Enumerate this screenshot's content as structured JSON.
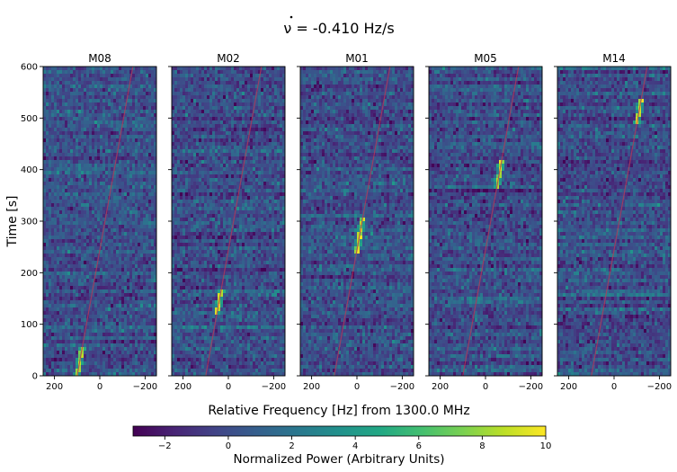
{
  "chart_data": {
    "type": "heatmap",
    "title": "ν̇ = -0.410 Hz/s",
    "title_dot_symbol": "ν",
    "title_rest": " = -0.410 Hz/s",
    "xlabel": "Relative Frequency [Hz] from 1300.0 MHz",
    "ylabel": "Time [s]",
    "xlim": [
      250,
      -250
    ],
    "ylim": [
      0,
      600
    ],
    "x_ticks": [
      200,
      0,
      -200
    ],
    "x_tick_labels": [
      "200",
      "0",
      "−200"
    ],
    "y_ticks": [
      0,
      100,
      200,
      300,
      400,
      500,
      600
    ],
    "y_tick_labels": [
      "0",
      "100",
      "200",
      "300",
      "400",
      "500",
      "600"
    ],
    "drift_rate_hz_per_s": -0.41,
    "panels": [
      {
        "name": "M08",
        "line_x_at_t0": 100,
        "signal_t_start": 0,
        "signal_t_end": 55
      },
      {
        "name": "M02",
        "line_x_at_t0": 100,
        "signal_t_start": 120,
        "signal_t_end": 170
      },
      {
        "name": "M01",
        "line_x_at_t0": 100,
        "signal_t_start": 240,
        "signal_t_end": 305
      },
      {
        "name": "M05",
        "line_x_at_t0": 100,
        "signal_t_start": 365,
        "signal_t_end": 420
      },
      {
        "name": "M14",
        "line_x_at_t0": 100,
        "signal_t_start": 490,
        "signal_t_end": 540
      }
    ],
    "colorbar": {
      "label": "Normalized Power (Arbitrary Units)",
      "colormap": "viridis",
      "range": [
        -3,
        10
      ],
      "ticks": [
        -2,
        0,
        2,
        4,
        6,
        8,
        10
      ],
      "tick_labels": [
        "−2",
        "0",
        "2",
        "4",
        "6",
        "8",
        "10"
      ]
    },
    "colors": {
      "drift_line": "#b23a5a",
      "background_mean": "#3a4f8a"
    }
  }
}
